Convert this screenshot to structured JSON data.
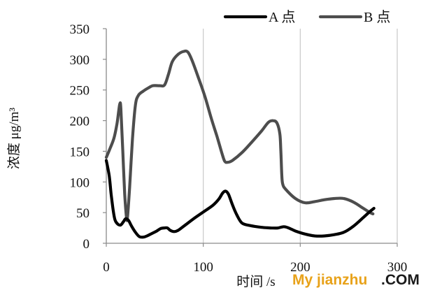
{
  "watermark": {
    "text": "My jianzhu",
    "dot_com": ".COM",
    "color_main": "#e8a21a",
    "color_com": "#1a1a1a"
  },
  "chart_data": {
    "type": "line",
    "title": "",
    "xlabel": "时间 /s",
    "ylabel": "浓度 μg/m³",
    "xlim": [
      0,
      300
    ],
    "ylim": [
      0,
      350
    ],
    "x_ticks": [
      0,
      100,
      200,
      300
    ],
    "y_ticks": [
      0,
      50,
      100,
      150,
      200,
      250,
      300,
      350
    ],
    "grid": "vertical",
    "legend_position": "top-right",
    "series": [
      {
        "name": "A 点",
        "color": "#000000",
        "points": [
          [
            0,
            135
          ],
          [
            3,
            110
          ],
          [
            5,
            80
          ],
          [
            7,
            55
          ],
          [
            9,
            38
          ],
          [
            12,
            31
          ],
          [
            15,
            30
          ],
          [
            18,
            36
          ],
          [
            20,
            40
          ],
          [
            23,
            37
          ],
          [
            26,
            28
          ],
          [
            30,
            18
          ],
          [
            34,
            11
          ],
          [
            38,
            10
          ],
          [
            42,
            12
          ],
          [
            47,
            16
          ],
          [
            52,
            20
          ],
          [
            56,
            24
          ],
          [
            60,
            25
          ],
          [
            63,
            25
          ],
          [
            66,
            21
          ],
          [
            70,
            19
          ],
          [
            74,
            21
          ],
          [
            80,
            28
          ],
          [
            90,
            40
          ],
          [
            100,
            51
          ],
          [
            110,
            62
          ],
          [
            116,
            72
          ],
          [
            120,
            82
          ],
          [
            123,
            85
          ],
          [
            126,
            80
          ],
          [
            130,
            63
          ],
          [
            135,
            45
          ],
          [
            140,
            33
          ],
          [
            148,
            29
          ],
          [
            160,
            26
          ],
          [
            170,
            25
          ],
          [
            177,
            25
          ],
          [
            183,
            27
          ],
          [
            188,
            25
          ],
          [
            195,
            20
          ],
          [
            205,
            15
          ],
          [
            215,
            12
          ],
          [
            225,
            12
          ],
          [
            235,
            14
          ],
          [
            245,
            18
          ],
          [
            255,
            28
          ],
          [
            265,
            42
          ],
          [
            272,
            52
          ],
          [
            276,
            57
          ]
        ]
      },
      {
        "name": "B 点",
        "color": "#4d4d4d",
        "points": [
          [
            0,
            140
          ],
          [
            4,
            155
          ],
          [
            8,
            172
          ],
          [
            11,
            195
          ],
          [
            13,
            218
          ],
          [
            14,
            228
          ],
          [
            15,
            220
          ],
          [
            17,
            150
          ],
          [
            19,
            80
          ],
          [
            21,
            40
          ],
          [
            22,
            45
          ],
          [
            24,
            90
          ],
          [
            27,
            170
          ],
          [
            30,
            225
          ],
          [
            33,
            241
          ],
          [
            38,
            248
          ],
          [
            43,
            253
          ],
          [
            48,
            257
          ],
          [
            55,
            257
          ],
          [
            60,
            258
          ],
          [
            64,
            275
          ],
          [
            68,
            296
          ],
          [
            74,
            308
          ],
          [
            80,
            313
          ],
          [
            84,
            312
          ],
          [
            88,
            300
          ],
          [
            95,
            270
          ],
          [
            102,
            238
          ],
          [
            108,
            205
          ],
          [
            114,
            175
          ],
          [
            119,
            148
          ],
          [
            122,
            134
          ],
          [
            125,
            132
          ],
          [
            130,
            135
          ],
          [
            140,
            148
          ],
          [
            150,
            165
          ],
          [
            160,
            183
          ],
          [
            167,
            197
          ],
          [
            172,
            200
          ],
          [
            176,
            196
          ],
          [
            179,
            178
          ],
          [
            180,
            150
          ],
          [
            181,
            110
          ],
          [
            182,
            96
          ],
          [
            185,
            88
          ],
          [
            195,
            73
          ],
          [
            205,
            66
          ],
          [
            215,
            68
          ],
          [
            225,
            71
          ],
          [
            235,
            73
          ],
          [
            245,
            73
          ],
          [
            255,
            67
          ],
          [
            265,
            57
          ],
          [
            272,
            50
          ],
          [
            275,
            48
          ]
        ]
      }
    ]
  }
}
